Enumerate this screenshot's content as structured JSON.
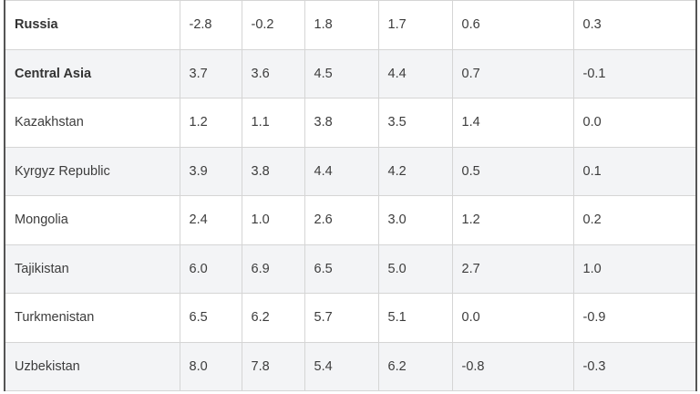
{
  "table": {
    "rows": [
      {
        "name": "Russia",
        "bold": true,
        "values": [
          "-2.8",
          "-0.2",
          "1.8",
          "1.7",
          "0.6",
          "0.3"
        ]
      },
      {
        "name": "Central Asia",
        "bold": true,
        "values": [
          "3.7",
          "3.6",
          "4.5",
          "4.4",
          "0.7",
          "-0.1"
        ]
      },
      {
        "name": "Kazakhstan",
        "bold": false,
        "values": [
          "1.2",
          "1.1",
          "3.8",
          "3.5",
          "1.4",
          "0.0"
        ]
      },
      {
        "name": "Kyrgyz Republic",
        "bold": false,
        "values": [
          "3.9",
          "3.8",
          "4.4",
          "4.2",
          "0.5",
          "0.1"
        ]
      },
      {
        "name": "Mongolia",
        "bold": false,
        "values": [
          "2.4",
          "1.0",
          "2.6",
          "3.0",
          "1.2",
          "0.2"
        ]
      },
      {
        "name": "Tajikistan",
        "bold": false,
        "values": [
          "6.0",
          "6.9",
          "6.5",
          "5.0",
          "2.7",
          "1.0"
        ]
      },
      {
        "name": "Turkmenistan",
        "bold": false,
        "values": [
          "6.5",
          "6.2",
          "5.7",
          "5.1",
          "0.0",
          "-0.9"
        ]
      },
      {
        "name": "Uzbekistan",
        "bold": false,
        "values": [
          "8.0",
          "7.8",
          "5.4",
          "6.2",
          "-0.8",
          "-0.3"
        ]
      }
    ]
  }
}
